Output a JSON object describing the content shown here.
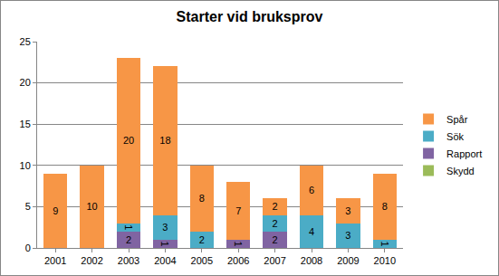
{
  "chart_data": {
    "type": "bar",
    "title": "Starter vid bruksprov",
    "categories": [
      "2001",
      "2002",
      "2003",
      "2004",
      "2005",
      "2006",
      "2007",
      "2008",
      "2009",
      "2010"
    ],
    "series": [
      {
        "name": "Skydd",
        "color": "#9bbb59",
        "values": [
          0,
          0,
          0,
          0,
          0,
          0,
          0,
          0,
          0,
          0
        ]
      },
      {
        "name": "Rapport",
        "color": "#8064a2",
        "values": [
          0,
          0,
          2,
          1,
          0,
          1,
          2,
          0,
          0,
          0
        ]
      },
      {
        "name": "Sök",
        "color": "#4bacc6",
        "values": [
          0,
          0,
          1,
          3,
          2,
          0,
          2,
          4,
          3,
          1
        ]
      },
      {
        "name": "Spår",
        "color": "#f79646",
        "values": [
          9,
          10,
          20,
          18,
          8,
          7,
          2,
          6,
          3,
          8
        ]
      }
    ],
    "stacked": true,
    "data_labels": true,
    "grid": true,
    "legend": "right",
    "ylim": [
      0,
      25
    ],
    "yticks": [
      0,
      5,
      10,
      15,
      20,
      25
    ]
  }
}
